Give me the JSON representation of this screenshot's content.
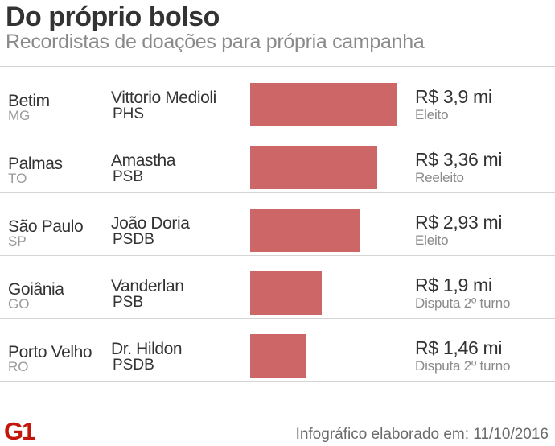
{
  "header": {
    "title": "Do próprio bolso",
    "subtitle": "Recordistas de doações para própria campanha"
  },
  "footer": {
    "logo_text": "G1",
    "credit": "Infográfico elaborado em: 11/10/2016"
  },
  "colors": {
    "bar": "#cd6666",
    "logo": "#c4170c"
  },
  "chart_data": {
    "type": "bar",
    "orientation": "horizontal",
    "title": "Do próprio bolso",
    "subtitle": "Recordistas de doações para própria campanha",
    "unit": "R$ mi",
    "xlim": [
      0,
      3.9
    ],
    "rows": [
      {
        "city": "Betim",
        "state": "MG",
        "candidate": "Vittorio Medioli",
        "party": "PHS",
        "value": 3.9,
        "value_label": "R$ 3,9 mi",
        "status": "Eleito"
      },
      {
        "city": "Palmas",
        "state": "TO",
        "candidate": "Amastha",
        "party": "PSB",
        "value": 3.36,
        "value_label": "R$ 3,36 mi",
        "status": "Reeleito"
      },
      {
        "city": "São Paulo",
        "state": "SP",
        "candidate": "João Doria",
        "party": "PSDB",
        "value": 2.93,
        "value_label": "R$ 2,93 mi",
        "status": "Eleito"
      },
      {
        "city": "Goiânia",
        "state": "GO",
        "candidate": "Vanderlan",
        "party": "PSB",
        "value": 1.9,
        "value_label": "R$ 1,9 mi",
        "status": "Disputa 2º turno"
      },
      {
        "city": "Porto Velho",
        "state": "RO",
        "candidate": "Dr. Hildon",
        "party": "PSDB",
        "value": 1.46,
        "value_label": "R$ 1,46 mi",
        "status": "Disputa 2º turno"
      }
    ]
  }
}
